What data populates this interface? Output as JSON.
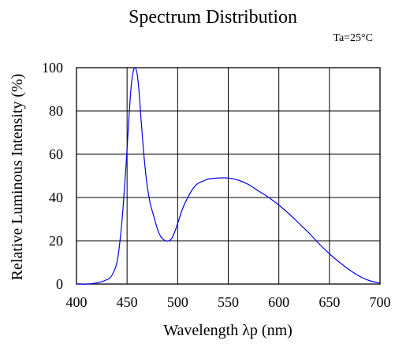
{
  "chart_data": {
    "type": "line",
    "title": "Spectrum Distribution",
    "annotation": "Ta=25°C",
    "xlabel": "Wavelength λp (nm)",
    "ylabel": "Relative Luminous Intensity (%)",
    "xlim": [
      400,
      700
    ],
    "ylim": [
      0,
      100
    ],
    "xticks": [
      "400",
      "450",
      "500",
      "550",
      "600",
      "650",
      "700"
    ],
    "yticks": [
      "0",
      "20",
      "40",
      "60",
      "80",
      "100"
    ],
    "grid": true,
    "colors": {
      "line": "#0000ee",
      "axis": "#000000",
      "grid": "#000000"
    },
    "series": [
      {
        "x": [
          400,
          410,
          420,
          430,
          435,
          440,
          443,
          446,
          449,
          452,
          454,
          456,
          458,
          460,
          462,
          464,
          466,
          468,
          470,
          473,
          476,
          479,
          482,
          485,
          488,
          491,
          494,
          497,
          500,
          505,
          510,
          515,
          520,
          525,
          530,
          540,
          550,
          560,
          570,
          580,
          590,
          600,
          610,
          620,
          630,
          640,
          650,
          660,
          670,
          680,
          690,
          700
        ],
        "y": [
          0,
          0,
          0.5,
          2,
          4,
          10,
          20,
          35,
          55,
          78,
          91,
          98,
          100,
          97,
          88,
          75,
          63,
          53,
          45,
          37,
          32,
          27,
          23,
          21,
          20,
          20,
          21,
          24,
          28,
          35,
          40,
          44,
          46.5,
          47.5,
          48.5,
          49,
          49,
          48,
          46,
          43,
          40,
          36.5,
          32.5,
          28,
          23.5,
          18.5,
          14,
          10,
          6.5,
          3.5,
          1.5,
          0.5
        ]
      }
    ]
  }
}
